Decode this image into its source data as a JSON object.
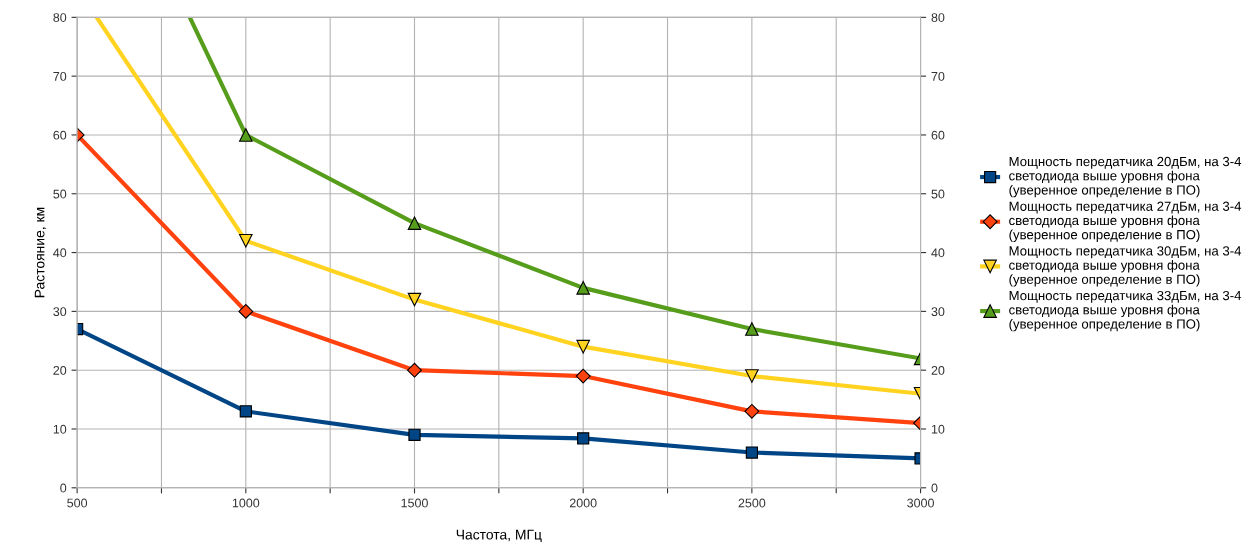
{
  "chart_data": {
    "type": "line",
    "xlabel": "Частота, МГц",
    "ylabel": "Растояние, км",
    "x": [
      500,
      1000,
      1500,
      2000,
      2500,
      3000
    ],
    "xlim": [
      500,
      3000
    ],
    "xticks": [
      500,
      {
        "value": 750,
        "label": null
      },
      1000,
      {
        "value": 1250,
        "label": null
      },
      1500,
      {
        "value": 1750,
        "label": null
      },
      2000,
      {
        "value": 2250,
        "label": null
      },
      2500,
      {
        "value": 2750,
        "label": null
      },
      3000
    ],
    "ylim": [
      0,
      80
    ],
    "yticks": [
      0,
      10,
      20,
      30,
      40,
      50,
      60,
      70,
      80
    ],
    "y2lim": [
      0,
      80
    ],
    "y2ticks": [
      0,
      10,
      20,
      30,
      40,
      50,
      60,
      70,
      80
    ],
    "grid": true,
    "legend": "right",
    "line_style": "solid",
    "series": [
      {
        "name": "Мощность передатчика 20дБм, на 3-4 светодиода выше уровня фона (уверенное определение в ПО)",
        "color": "#004586",
        "marker": "square",
        "values": [
          27,
          13,
          9,
          8.4,
          6,
          5
        ]
      },
      {
        "name": "Мощность передатчика 27дБм, на 3-4 светодиода выше уровня фона (уверенное определение в ПО)",
        "color": "#ff420e",
        "marker": "diamond",
        "values": [
          60,
          30,
          20,
          19,
          13,
          11
        ]
      },
      {
        "name": "Мощность передатчика 30дБм, на 3-4 светодиода выше уровня фона (уверенное определение в ПО)",
        "color": "#ffd320",
        "marker": "triangle_down",
        "x": [
          558,
          1000,
          1500,
          2000,
          2500,
          3000
        ],
        "values": [
          80,
          42,
          32,
          24,
          19,
          16
        ]
      },
      {
        "name": "Мощность передатчика 33дБм, на 3-4 светодиода выше уровня фона (уверенное определение в ПО)",
        "color": "#579d1c",
        "marker": "triangle",
        "x": [
          834,
          1000,
          1500,
          2000,
          2500,
          3000
        ],
        "values": [
          80,
          60,
          45,
          34,
          27,
          22
        ]
      }
    ]
  }
}
